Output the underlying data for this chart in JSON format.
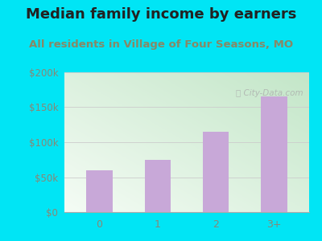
{
  "title": "Median family income by earners",
  "subtitle": "All residents in Village of Four Seasons, MO",
  "categories": [
    "0",
    "1",
    "2",
    "3+"
  ],
  "values": [
    60000,
    75000,
    115000,
    165000
  ],
  "bar_color": "#c8a8d8",
  "ylim": [
    0,
    200000
  ],
  "yticks": [
    0,
    50000,
    100000,
    150000,
    200000
  ],
  "ytick_labels": [
    "$0",
    "$50k",
    "$100k",
    "$150k",
    "$200k"
  ],
  "bg_grad_topleft": "#d8efd4",
  "bg_grad_topright": "#f0f8f0",
  "bg_grad_bottom": "#e8f8f0",
  "outer_bg": "#00e5f5",
  "title_color": "#222222",
  "subtitle_color": "#888866",
  "title_fontsize": 13,
  "subtitle_fontsize": 9.5,
  "tick_color": "#888877",
  "watermark": "City-Data.com"
}
